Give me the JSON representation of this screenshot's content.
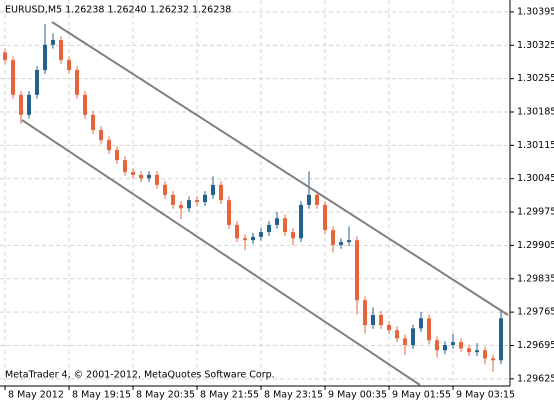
{
  "chart_data": {
    "type": "candlestick",
    "title": "EURUSD,M5  1.26238 1.26240 1.26232 1.26238",
    "footer": "MetaTrader 4, © 2001-2012, MetaQuotes Software Corp.",
    "categories": [
      "8 May 2012",
      null,
      null,
      null,
      null,
      null,
      null,
      null,
      "8 May 19:15",
      null,
      null,
      null,
      null,
      null,
      null,
      null,
      "8 May 20:35",
      null,
      null,
      null,
      null,
      null,
      null,
      null,
      "8 May 21:55",
      null,
      null,
      null,
      null,
      null,
      null,
      null,
      "8 May 23:15",
      null,
      null,
      null,
      null,
      null,
      null,
      null,
      "9 May 00:35",
      null,
      null,
      null,
      null,
      null,
      null,
      null,
      "9 May 01:55",
      null,
      null,
      null,
      null,
      null,
      null,
      null,
      "9 May 03:15",
      null,
      null,
      null,
      null,
      null,
      null
    ],
    "open": [
      1.3031,
      1.30294,
      1.30221,
      1.30179,
      1.30221,
      1.30273,
      1.30326,
      1.30336,
      1.30294,
      1.30273,
      1.30221,
      1.30179,
      1.30147,
      1.30126,
      1.30105,
      1.30084,
      1.30059,
      1.30053,
      1.30046,
      1.30053,
      1.30032,
      1.30011,
      1.2999,
      1.29983,
      1.3,
      1.29996,
      1.30011,
      1.30032,
      1.3,
      1.29948,
      1.2992,
      1.29916,
      1.29923,
      1.29933,
      1.29948,
      1.29962,
      1.29933,
      1.2992,
      1.2999,
      1.30011,
      1.2999,
      1.29937,
      1.29906,
      1.29912,
      1.29916,
      1.2979,
      1.29738,
      1.29759,
      1.29738,
      1.29727,
      1.2971,
      1.29696,
      1.29731,
      1.29752,
      1.29706,
      1.29685,
      1.29696,
      1.29702,
      1.29689,
      1.29681,
      1.29685,
      1.29668,
      1.29664
    ],
    "high": [
      1.30318,
      1.30302,
      1.30229,
      1.30229,
      1.30281,
      1.3037,
      1.3035,
      1.30344,
      1.30302,
      1.30281,
      1.30229,
      1.30187,
      1.30155,
      1.30134,
      1.30113,
      1.30092,
      1.30067,
      1.30061,
      1.30061,
      1.30061,
      1.3004,
      1.30019,
      1.29998,
      1.30008,
      1.30008,
      1.30019,
      1.3005,
      1.3004,
      1.30008,
      1.29956,
      1.29928,
      1.29931,
      1.29941,
      1.29956,
      1.29975,
      1.2997,
      1.29941,
      1.29998,
      1.3006,
      1.30019,
      1.29998,
      1.29945,
      1.2992,
      1.29945,
      1.29924,
      1.29798,
      1.29775,
      1.29767,
      1.29746,
      1.29735,
      1.29718,
      1.29739,
      1.29765,
      1.2976,
      1.29714,
      1.29704,
      1.2972,
      1.2971,
      1.29697,
      1.297,
      1.29693,
      1.29676,
      1.2977
    ],
    "low": [
      1.30286,
      1.30213,
      1.3016,
      1.30171,
      1.30213,
      1.30265,
      1.30318,
      1.30286,
      1.30265,
      1.30213,
      1.30171,
      1.30139,
      1.30118,
      1.30097,
      1.30076,
      1.30051,
      1.30045,
      1.30038,
      1.30038,
      1.30024,
      1.30003,
      1.29982,
      1.2996,
      1.29975,
      1.29988,
      1.29988,
      1.30003,
      1.29992,
      1.2994,
      1.29912,
      1.29895,
      1.29908,
      1.29915,
      1.29925,
      1.2994,
      1.29925,
      1.29905,
      1.29912,
      1.29982,
      1.29982,
      1.29929,
      1.2989,
      1.29898,
      1.29904,
      1.2976,
      1.2972,
      1.2973,
      1.2973,
      1.29719,
      1.29702,
      1.29675,
      1.29688,
      1.29723,
      1.29698,
      1.2967,
      1.29677,
      1.29688,
      1.29681,
      1.29673,
      1.29673,
      1.29655,
      1.2964,
      1.29656
    ],
    "close": [
      1.30294,
      1.30221,
      1.30179,
      1.30221,
      1.30273,
      1.30326,
      1.30336,
      1.30294,
      1.30273,
      1.30221,
      1.30179,
      1.30147,
      1.30126,
      1.30105,
      1.30084,
      1.30059,
      1.30053,
      1.30046,
      1.30053,
      1.30032,
      1.30011,
      1.2999,
      1.29983,
      1.3,
      1.29996,
      1.30011,
      1.30032,
      1.3,
      1.29948,
      1.2992,
      1.29916,
      1.29923,
      1.29933,
      1.29948,
      1.29962,
      1.29933,
      1.2992,
      1.2999,
      1.30011,
      1.2999,
      1.29937,
      1.29906,
      1.29912,
      1.29916,
      1.2979,
      1.29738,
      1.29759,
      1.29738,
      1.29727,
      1.2971,
      1.29696,
      1.29731,
      1.29752,
      1.29706,
      1.29685,
      1.29696,
      1.29702,
      1.29689,
      1.29681,
      1.29685,
      1.29668,
      1.29664,
      1.29752
    ],
    "up_color": "#23628f",
    "down_color": "#e9643b",
    "ylim": [
      1.2961,
      1.3042
    ],
    "yticks": [
      1.30395,
      1.30325,
      1.30255,
      1.30185,
      1.30115,
      1.30045,
      1.29975,
      1.29905,
      1.29835,
      1.29765,
      1.29695,
      1.29625
    ],
    "grid": true
  }
}
